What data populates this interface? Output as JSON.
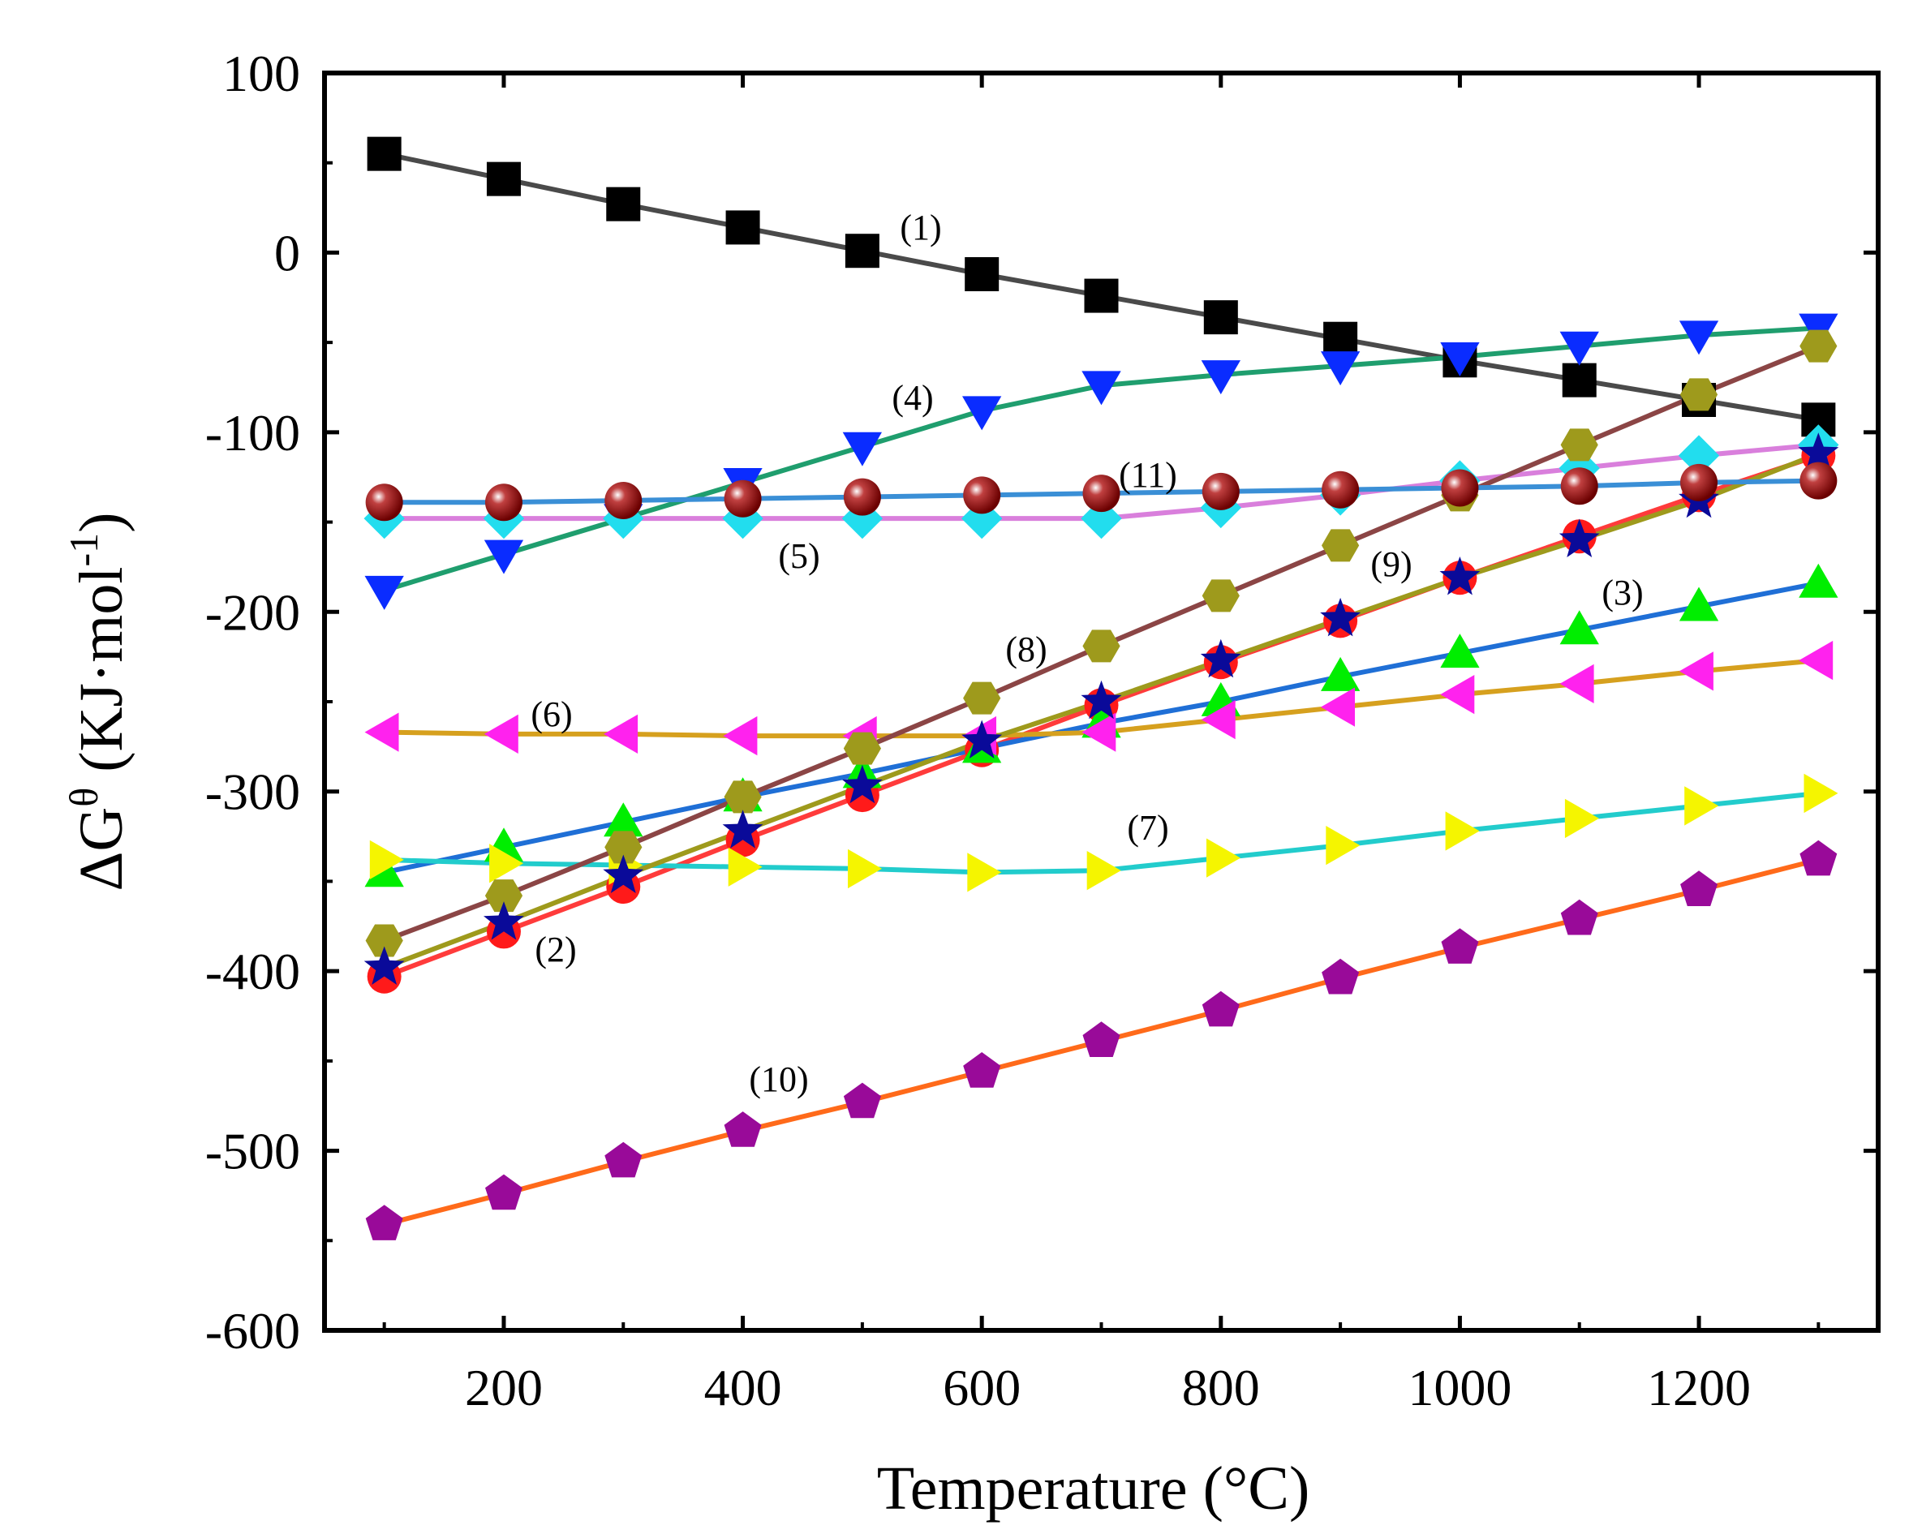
{
  "chart_data": {
    "type": "line",
    "xlabel": "Temperature (°C)",
    "ylabel": {
      "main": "ΔG",
      "sup": "θ",
      "unit_pre": " (KJ·mol",
      "unit_sup": "-1",
      "unit_post": ")"
    },
    "xlim": [
      50,
      1350
    ],
    "ylim": [
      -600,
      100
    ],
    "xticks": [
      200,
      400,
      600,
      800,
      1000,
      1200
    ],
    "yticks": [
      -600,
      -500,
      -400,
      -300,
      -200,
      -100,
      0,
      100
    ],
    "grid": false,
    "x": [
      100,
      200,
      300,
      400,
      500,
      600,
      700,
      800,
      900,
      1000,
      1100,
      1200,
      1300
    ],
    "series": [
      {
        "label": "(1)",
        "line_color": "#4a4a4a",
        "marker": "square",
        "marker_color": "#000000",
        "values": [
          55,
          41,
          27,
          14,
          1,
          -12,
          -24,
          -36,
          -48,
          -60,
          -71,
          -82,
          -93
        ]
      },
      {
        "label": "(2)",
        "line_color": "#ff3b3b",
        "marker": "circle",
        "marker_color": "#ff1a1a",
        "values": [
          -403,
          -378,
          -353,
          -327,
          -302,
          -277,
          -252,
          -228,
          -205,
          -181,
          -158,
          -135,
          -113
        ]
      },
      {
        "label": "(3)",
        "line_color": "#1f6fd6",
        "marker": "triangle-up",
        "marker_color": "#00ee00",
        "values": [
          -345,
          -331,
          -317,
          -303,
          -290,
          -276,
          -262,
          -250,
          -236,
          -223,
          -210,
          -197,
          -184
        ]
      },
      {
        "label": "(4)",
        "line_color": "#1f9e6e",
        "marker": "triangle-down",
        "marker_color": "#0a2cff",
        "values": [
          -188,
          -168,
          -148,
          -128,
          -108,
          -88,
          -74,
          -68,
          -63,
          -58,
          -52,
          -46,
          -42
        ]
      },
      {
        "label": "(5)",
        "line_color": "#d97fdc",
        "marker": "diamond",
        "marker_color": "#22ddee",
        "values": [
          -148,
          -148,
          -148,
          -148,
          -148,
          -148,
          -148,
          -142,
          -135,
          -127,
          -120,
          -113,
          -107
        ]
      },
      {
        "label": "(6)",
        "line_color": "#d6a01e",
        "marker": "triangle-left",
        "marker_color": "#ff22ee",
        "values": [
          -267,
          -268,
          -268,
          -269,
          -269,
          -269,
          -267,
          -260,
          -253,
          -246,
          -240,
          -233,
          -227
        ]
      },
      {
        "label": "(7)",
        "line_color": "#22cccc",
        "marker": "triangle-right",
        "marker_color": "#f5f500",
        "values": [
          -338,
          -340,
          -341,
          -342,
          -343,
          -345,
          -344,
          -337,
          -330,
          -322,
          -315,
          -308,
          -301
        ]
      },
      {
        "label": "(8)",
        "line_color": "#8b4545",
        "marker": "hexagon",
        "marker_color": "#9e9a1c",
        "values": [
          -383,
          -358,
          -331,
          -303,
          -276,
          -248,
          -219,
          -191,
          -163,
          -135,
          -107,
          -79,
          -52
        ]
      },
      {
        "label": "(9)",
        "line_color": "#9e9a1c",
        "marker": "star",
        "marker_color": "#0a0a99",
        "values": [
          -398,
          -373,
          -347,
          -322,
          -297,
          -272,
          -250,
          -227,
          -204,
          -181,
          -160,
          -138,
          -112
        ]
      },
      {
        "label": "(10)",
        "line_color": "#ff6a1a",
        "marker": "pentagon",
        "marker_color": "#990a99",
        "values": [
          -541,
          -524,
          -506,
          -489,
          -473,
          -456,
          -439,
          -422,
          -404,
          -387,
          -371,
          -355,
          -338
        ]
      },
      {
        "label": "(11)",
        "line_color": "#3a8fd6",
        "marker": "sphere",
        "marker_color": "#8b0a0a",
        "values": [
          -139,
          -139,
          -138,
          -137,
          -136,
          -135,
          -134,
          -133,
          -132,
          -131,
          -130,
          -128,
          -127
        ]
      }
    ]
  }
}
